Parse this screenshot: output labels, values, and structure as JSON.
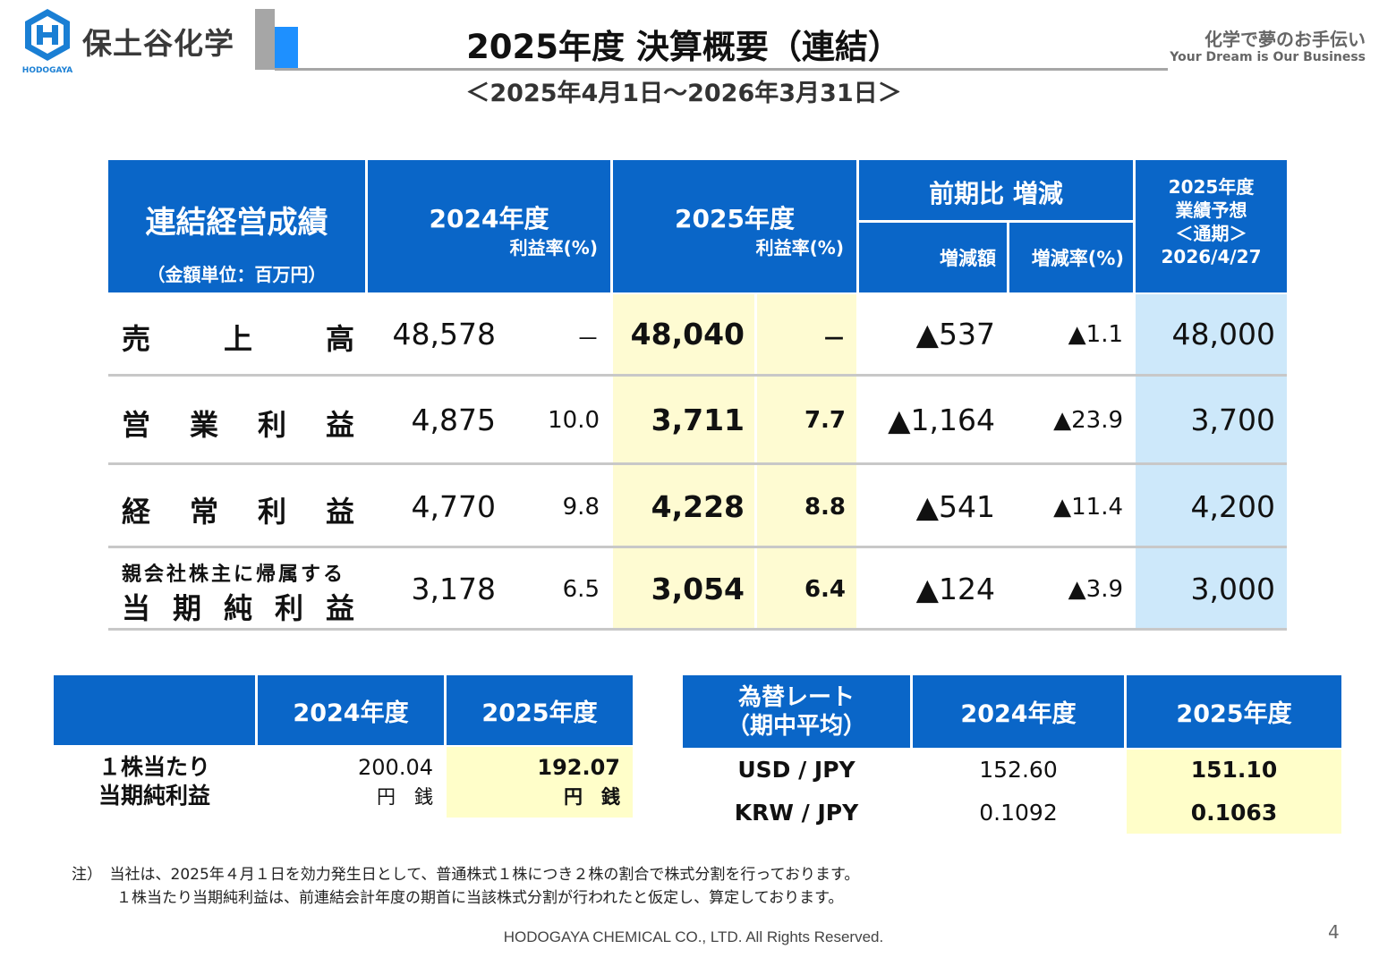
{
  "header": {
    "company": "保土谷化学",
    "logo_text": "HODOGAYA",
    "title": "2025年度 決算概要（連結）",
    "period": "＜2025年4月1日～2026年3月31日＞",
    "slogan_jp": "化学で夢のお手伝い",
    "slogan_en": "Your Dream is Our Business"
  },
  "main_table": {
    "header": {
      "title": "連結経営成績",
      "unit": "（金額単位：百万円）",
      "fy2024": "2024年度",
      "fy2025": "2025年度",
      "margin": "利益率(%)",
      "yoy": "前期比 増減",
      "yoy_amount": "増減額",
      "yoy_rate": "増減率(%)",
      "forecast_l1": "2025年度",
      "forecast_l2": "業績予想",
      "forecast_l3": "＜通期＞",
      "forecast_l4": "2026/4/27"
    },
    "rows": [
      {
        "label_chars": [
          "売",
          "上",
          "高"
        ],
        "fy2024": "48,578",
        "fy2024_margin": "－",
        "fy2025": "48,040",
        "fy2025_margin": "－",
        "diff": "▲537",
        "diff_rate": "▲1.1",
        "forecast": "48,000"
      },
      {
        "label_chars": [
          "営",
          "業",
          "利",
          "益"
        ],
        "fy2024": "4,875",
        "fy2024_margin": "10.0",
        "fy2025": "3,711",
        "fy2025_margin": "7.7",
        "diff": "▲1,164",
        "diff_rate": "▲23.9",
        "forecast": "3,700"
      },
      {
        "label_chars": [
          "経",
          "常",
          "利",
          "益"
        ],
        "fy2024": "4,770",
        "fy2024_margin": "9.8",
        "fy2025": "4,228",
        "fy2025_margin": "8.8",
        "diff": "▲541",
        "diff_rate": "▲11.4",
        "forecast": "4,200"
      },
      {
        "label_line1": "親会社株主に帰属する",
        "label_chars": [
          "当",
          "期",
          "純",
          "利",
          "益"
        ],
        "fy2024": "3,178",
        "fy2024_margin": "6.5",
        "fy2025": "3,054",
        "fy2025_margin": "6.4",
        "diff": "▲124",
        "diff_rate": "▲3.9",
        "forecast": "3,000"
      }
    ]
  },
  "eps_table": {
    "col_2024": "2024年度",
    "col_2025": "2025年度",
    "label_l1": "１株当たり",
    "label_l2": "当期純利益",
    "val_2024": "200.04",
    "val_2025": "192.07",
    "unit": "円　銭"
  },
  "fx_table": {
    "label_l1": "為替レート",
    "label_l2": "（期中平均）",
    "col_2024": "2024年度",
    "col_2025": "2025年度",
    "rows": [
      {
        "pair": "USD / JPY",
        "fy2024": "152.60",
        "fy2025": "151.10"
      },
      {
        "pair": "KRW / JPY",
        "fy2024": "0.1092",
        "fy2025": "0.1063"
      }
    ]
  },
  "footnote": {
    "l1": "注）　当社は、2025年４月１日を効力発生日として、普通株式１株につき２株の割合で株式分割を行っております。",
    "l2": "１株当たり当期純利益は、前連結会計年度の期首に当該株式分割が行われたと仮定し、算定しております。"
  },
  "footer": {
    "copyright": "HODOGAYA CHEMICAL CO., LTD. All Rights Reserved.",
    "page_number": "4"
  },
  "colors": {
    "header_blue": "#0a66c8",
    "highlight_yellow": "#fefbd2",
    "forecast_blue": "#cde8fa"
  }
}
